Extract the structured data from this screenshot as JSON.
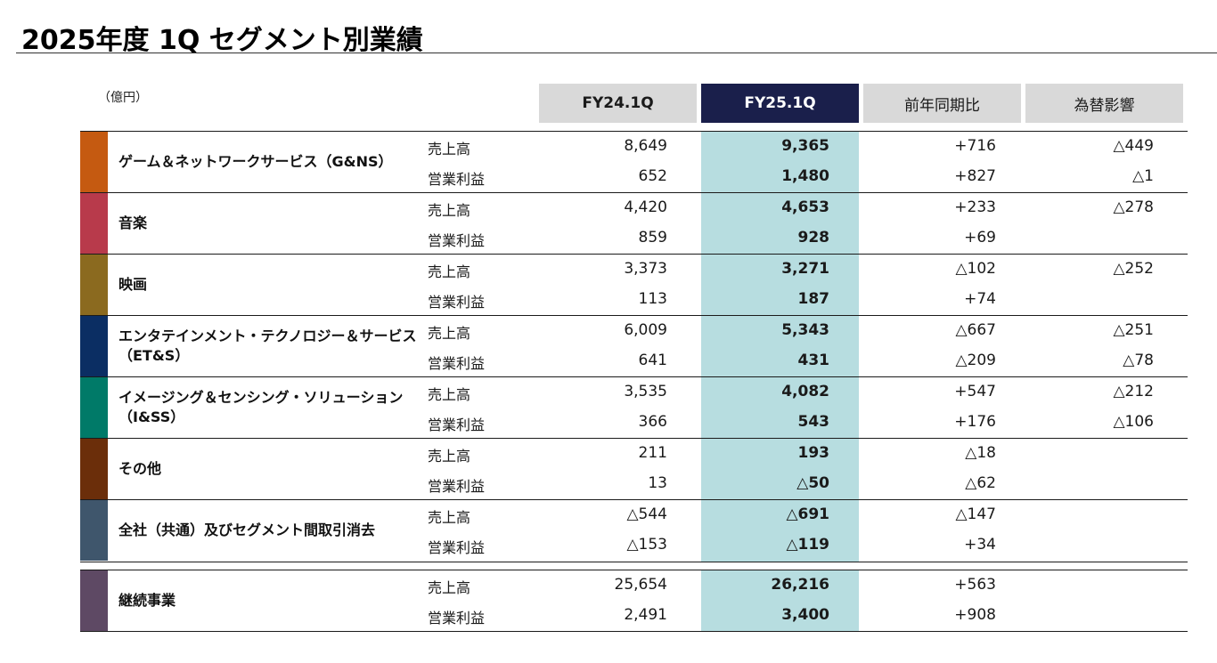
{
  "title": "2025年度 1Q セグメント別業績",
  "unit": "（億円）",
  "headers": {
    "prev": "FY24.1Q",
    "cur": "FY25.1Q",
    "yoy": "前年同期比",
    "fx": "為替影響"
  },
  "row_labels": {
    "sales": "売上高",
    "op": "営業利益"
  },
  "colors": {
    "header_bg": "#d9d9d9",
    "current_header_bg": "#1a1f4b",
    "current_column_bg": "#b7dde0",
    "gns": "#c55a11",
    "music": "#b83a4b",
    "pictures": "#8b6a1f",
    "ets": "#0b2e63",
    "iss": "#007a68",
    "other": "#6b2e0a",
    "corporate": "#3f566c",
    "continuing": "#5e4964"
  },
  "segments": [
    {
      "name": "ゲーム＆ネットワークサービス（G&NS）",
      "sales": {
        "prev": "8,649",
        "cur": "9,365",
        "yoy": "+716",
        "fx": "△449"
      },
      "op": {
        "prev": "652",
        "cur": "1,480",
        "yoy": "+827",
        "fx": "△1"
      }
    },
    {
      "name": "音楽",
      "sales": {
        "prev": "4,420",
        "cur": "4,653",
        "yoy": "+233",
        "fx": "△278"
      },
      "op": {
        "prev": "859",
        "cur": "928",
        "yoy": "+69",
        "fx": ""
      }
    },
    {
      "name": "映画",
      "sales": {
        "prev": "3,373",
        "cur": "3,271",
        "yoy": "△102",
        "fx": "△252"
      },
      "op": {
        "prev": "113",
        "cur": "187",
        "yoy": "+74",
        "fx": ""
      }
    },
    {
      "name": "エンタテインメント・テクノロジー＆サービス",
      "name2": "（ET&S）",
      "sales": {
        "prev": "6,009",
        "cur": "5,343",
        "yoy": "△667",
        "fx": "△251"
      },
      "op": {
        "prev": "641",
        "cur": "431",
        "yoy": "△209",
        "fx": "△78"
      }
    },
    {
      "name": "イメージング＆センシング・ソリューション",
      "name2": "（I&SS）",
      "sales": {
        "prev": "3,535",
        "cur": "4,082",
        "yoy": "+547",
        "fx": "△212"
      },
      "op": {
        "prev": "366",
        "cur": "543",
        "yoy": "+176",
        "fx": "△106"
      }
    },
    {
      "name": "その他",
      "sales": {
        "prev": "211",
        "cur": "193",
        "yoy": "△18",
        "fx": ""
      },
      "op": {
        "prev": "13",
        "cur": "△50",
        "yoy": "△62",
        "fx": ""
      }
    },
    {
      "name": "全社（共通）及びセグメント間取引消去",
      "sales": {
        "prev": "△544",
        "cur": "△691",
        "yoy": "△147",
        "fx": ""
      },
      "op": {
        "prev": "△153",
        "cur": "△119",
        "yoy": "+34",
        "fx": ""
      }
    },
    {
      "name": "継続事業",
      "sales": {
        "prev": "25,654",
        "cur": "26,216",
        "yoy": "+563",
        "fx": ""
      },
      "op": {
        "prev": "2,491",
        "cur": "3,400",
        "yoy": "+908",
        "fx": ""
      }
    }
  ]
}
